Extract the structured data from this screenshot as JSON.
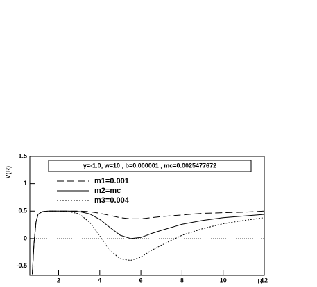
{
  "chart_data": {
    "type": "line",
    "title": "γ=-1.0, w=10 , b=0.000001 , mc=0.0025477672",
    "x_label": "R",
    "y_label": "V(R)",
    "x": [
      0.72,
      0.8,
      0.9,
      1.0,
      1.2,
      1.5,
      2,
      2.5,
      3,
      3.5,
      4,
      4.5,
      5,
      5.5,
      6,
      6.5,
      7,
      8,
      9,
      10,
      11,
      12
    ],
    "series": [
      {
        "name": "m1=0.001",
        "color": "#000000",
        "dash": "10,5",
        "values": [
          -0.65,
          -0.1,
          0.3,
          0.44,
          0.49,
          0.5,
          0.5,
          0.5,
          0.5,
          0.49,
          0.46,
          0.42,
          0.38,
          0.36,
          0.36,
          0.38,
          0.4,
          0.43,
          0.46,
          0.47,
          0.48,
          0.5
        ]
      },
      {
        "name": "m2=mc",
        "color": "#000000",
        "dash": "none",
        "values": [
          -0.65,
          -0.1,
          0.3,
          0.44,
          0.49,
          0.5,
          0.5,
          0.5,
          0.49,
          0.45,
          0.35,
          0.2,
          0.06,
          0.0,
          0.02,
          0.09,
          0.15,
          0.26,
          0.33,
          0.38,
          0.41,
          0.44
        ]
      },
      {
        "name": "m3=0.004",
        "color": "#000000",
        "dash": "2,2",
        "values": [
          -0.65,
          -0.1,
          0.3,
          0.44,
          0.49,
          0.5,
          0.5,
          0.49,
          0.45,
          0.3,
          0.05,
          -0.22,
          -0.37,
          -0.4,
          -0.34,
          -0.22,
          -0.12,
          0.06,
          0.18,
          0.27,
          0.33,
          0.38
        ]
      }
    ],
    "xlim": [
      0.6,
      12
    ],
    "ylim": [
      -0.67,
      1.5
    ],
    "xticks": [
      2,
      4,
      6,
      8,
      10,
      12
    ],
    "yticks": [
      -0.5,
      0,
      0.5,
      1,
      1.5
    ],
    "reference_line": 0
  }
}
